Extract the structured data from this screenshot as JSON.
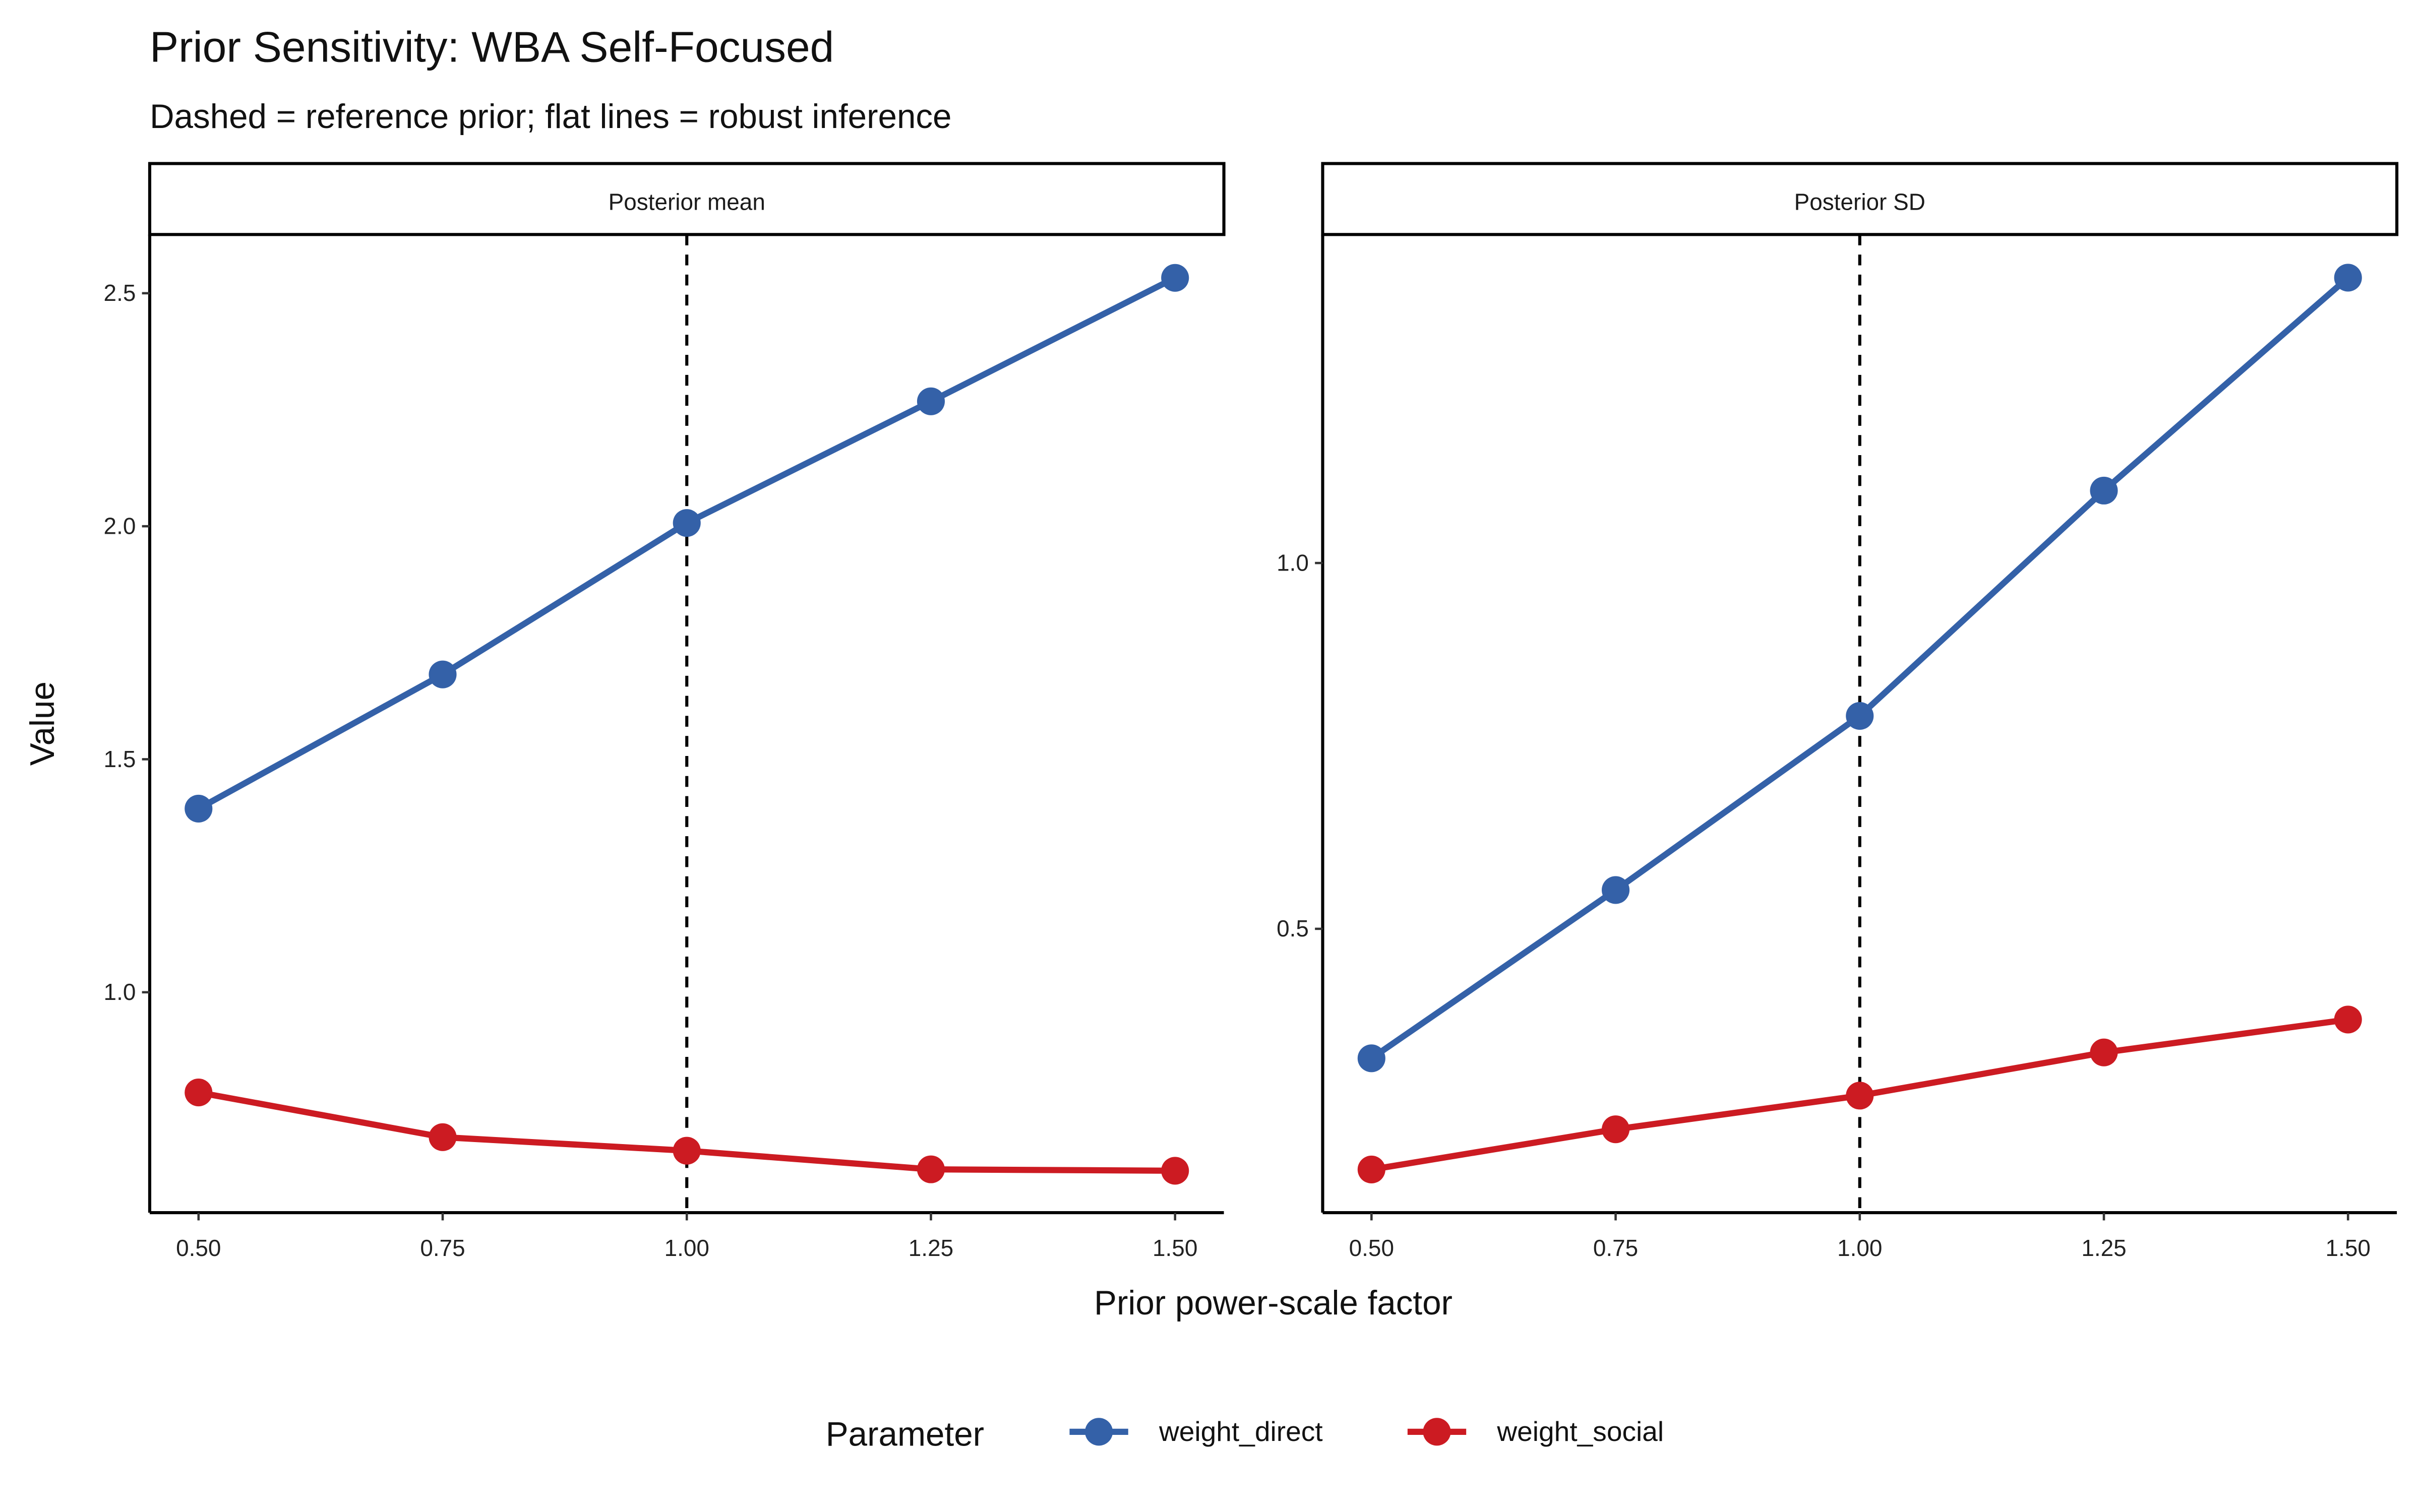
{
  "chart_data": {
    "type": "line",
    "title": "Prior Sensitivity: WBA Self-Focused",
    "subtitle": "Dashed = reference prior; flat lines = robust inference",
    "xlabel": "Prior power-scale factor",
    "ylabel": "Value",
    "x": [
      0.5,
      0.75,
      1.0,
      1.25,
      1.5
    ],
    "x_tick_labels": [
      "0.50",
      "0.75",
      "1.00",
      "1.25",
      "1.50"
    ],
    "reference_line_x": 1.0,
    "legend": {
      "title": "Parameter",
      "placement": "bottom"
    },
    "colors": {
      "weight_direct": "#3461a8",
      "weight_social": "#cc1b22"
    },
    "panels": [
      {
        "title": "Posterior mean",
        "ylim": [
          0.527,
          2.626
        ],
        "y_ticks": [
          1.0,
          1.5,
          2.0,
          2.5
        ],
        "y_tick_labels": [
          "1.0",
          "1.5",
          "2.0",
          "2.5"
        ],
        "series": [
          {
            "name": "weight_direct",
            "values": [
              1.394,
              1.682,
              2.007,
              2.268,
              2.533
            ]
          },
          {
            "name": "weight_social",
            "values": [
              0.785,
              0.689,
              0.66,
              0.62,
              0.617
            ]
          }
        ]
      },
      {
        "title": "Posterior SD",
        "ylim": [
          0.112,
          1.449
        ],
        "y_ticks": [
          0.5,
          1.0
        ],
        "y_tick_labels": [
          "0.5",
          "1.0"
        ],
        "series": [
          {
            "name": "weight_direct",
            "values": [
              0.323,
              0.553,
              0.791,
              1.099,
              1.39
            ]
          },
          {
            "name": "weight_social",
            "values": [
              0.171,
              0.226,
              0.272,
              0.331,
              0.376
            ]
          }
        ]
      }
    ]
  }
}
